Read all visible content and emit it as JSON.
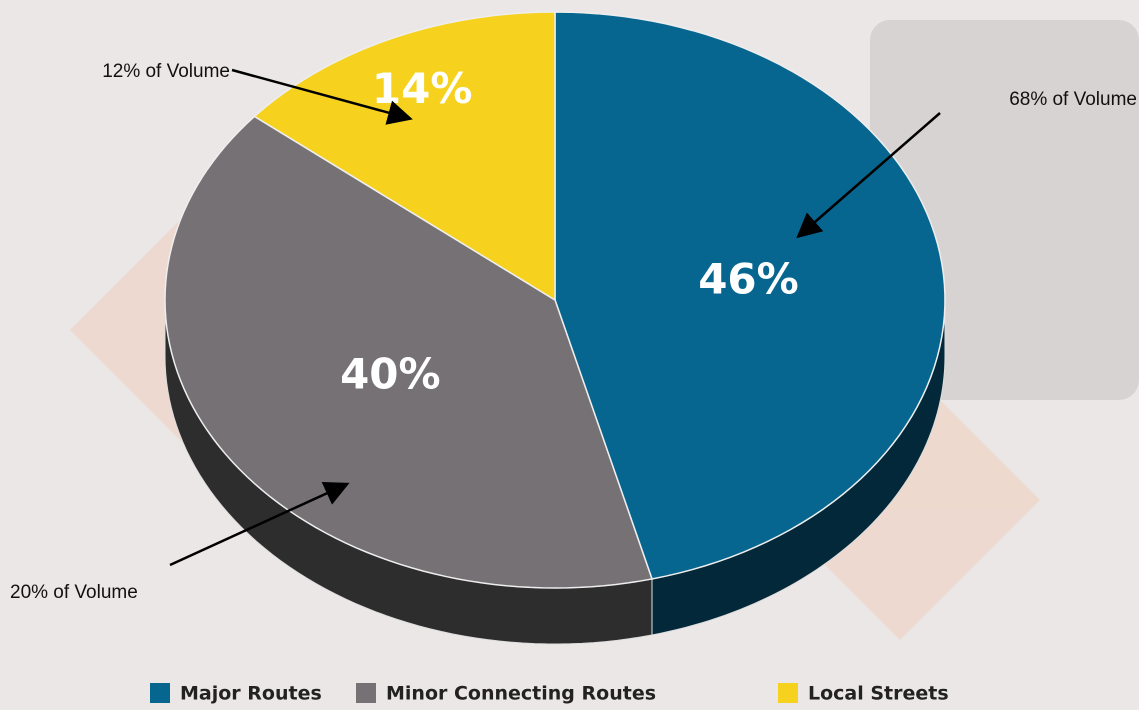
{
  "chart_data": {
    "type": "pie",
    "categories": [
      "Major Routes",
      "Minor Connecting Routes",
      "Local Streets"
    ],
    "values": [
      46,
      40,
      14
    ],
    "value_labels": [
      "46%",
      "40%",
      "14%"
    ],
    "colors": [
      "#07668f",
      "#757175",
      "#f6d21e"
    ],
    "annotations": [
      "68% of Volume",
      "20% of Volume",
      "12% of Volume"
    ],
    "legend": "bottom"
  }
}
